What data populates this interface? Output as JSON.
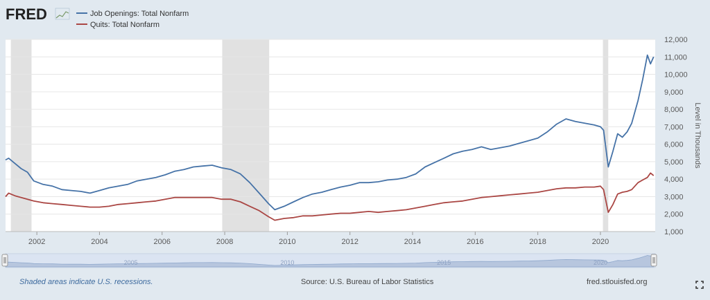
{
  "header": {
    "logo_text": "FRED",
    "logo_icon": "fred-graph-icon"
  },
  "chart_data": {
    "type": "line",
    "title": "",
    "xlabel": "",
    "ylabel": "Level in Thousands",
    "xlim": [
      2001.0,
      2021.75
    ],
    "ylim": [
      1000,
      12000
    ],
    "x_ticks": [
      "2002",
      "2004",
      "2006",
      "2008",
      "2010",
      "2012",
      "2014",
      "2016",
      "2018",
      "2020"
    ],
    "y_ticks": [
      "1,000",
      "2,000",
      "3,000",
      "4,000",
      "5,000",
      "6,000",
      "7,000",
      "8,000",
      "9,000",
      "10,000",
      "11,000",
      "12,000"
    ],
    "grid": true,
    "legend_position": "top-left",
    "recessions": [
      [
        2001.17,
        2001.83
      ],
      [
        2007.92,
        2009.42
      ],
      [
        2020.08,
        2020.25
      ]
    ],
    "series": [
      {
        "name": "Job Openings: Total Nonfarm",
        "color": "#4572a7",
        "points": [
          [
            2001.0,
            5100
          ],
          [
            2001.1,
            5200
          ],
          [
            2001.3,
            4900
          ],
          [
            2001.5,
            4600
          ],
          [
            2001.7,
            4400
          ],
          [
            2001.9,
            3900
          ],
          [
            2002.2,
            3700
          ],
          [
            2002.5,
            3600
          ],
          [
            2002.8,
            3400
          ],
          [
            2003.1,
            3350
          ],
          [
            2003.4,
            3300
          ],
          [
            2003.7,
            3200
          ],
          [
            2004.0,
            3350
          ],
          [
            2004.3,
            3500
          ],
          [
            2004.6,
            3600
          ],
          [
            2004.9,
            3700
          ],
          [
            2005.2,
            3900
          ],
          [
            2005.5,
            4000
          ],
          [
            2005.8,
            4100
          ],
          [
            2006.1,
            4250
          ],
          [
            2006.4,
            4450
          ],
          [
            2006.7,
            4550
          ],
          [
            2007.0,
            4700
          ],
          [
            2007.3,
            4750
          ],
          [
            2007.6,
            4800
          ],
          [
            2007.9,
            4650
          ],
          [
            2008.2,
            4550
          ],
          [
            2008.5,
            4300
          ],
          [
            2008.8,
            3800
          ],
          [
            2009.1,
            3200
          ],
          [
            2009.4,
            2600
          ],
          [
            2009.6,
            2250
          ],
          [
            2009.9,
            2450
          ],
          [
            2010.2,
            2700
          ],
          [
            2010.5,
            2950
          ],
          [
            2010.8,
            3150
          ],
          [
            2011.1,
            3250
          ],
          [
            2011.4,
            3400
          ],
          [
            2011.7,
            3550
          ],
          [
            2012.0,
            3650
          ],
          [
            2012.3,
            3800
          ],
          [
            2012.6,
            3800
          ],
          [
            2012.9,
            3850
          ],
          [
            2013.2,
            3950
          ],
          [
            2013.5,
            4000
          ],
          [
            2013.8,
            4100
          ],
          [
            2014.1,
            4300
          ],
          [
            2014.4,
            4700
          ],
          [
            2014.7,
            4950
          ],
          [
            2015.0,
            5200
          ],
          [
            2015.3,
            5450
          ],
          [
            2015.6,
            5600
          ],
          [
            2015.9,
            5700
          ],
          [
            2016.2,
            5850
          ],
          [
            2016.5,
            5700
          ],
          [
            2016.8,
            5800
          ],
          [
            2017.1,
            5900
          ],
          [
            2017.4,
            6050
          ],
          [
            2017.7,
            6200
          ],
          [
            2018.0,
            6350
          ],
          [
            2018.3,
            6700
          ],
          [
            2018.6,
            7150
          ],
          [
            2018.9,
            7450
          ],
          [
            2019.2,
            7300
          ],
          [
            2019.5,
            7200
          ],
          [
            2019.8,
            7100
          ],
          [
            2020.0,
            7000
          ],
          [
            2020.1,
            6800
          ],
          [
            2020.25,
            4700
          ],
          [
            2020.4,
            5600
          ],
          [
            2020.55,
            6600
          ],
          [
            2020.7,
            6400
          ],
          [
            2020.85,
            6700
          ],
          [
            2021.0,
            7200
          ],
          [
            2021.2,
            8500
          ],
          [
            2021.35,
            9700
          ],
          [
            2021.5,
            11100
          ],
          [
            2021.6,
            10600
          ],
          [
            2021.7,
            11000
          ]
        ]
      },
      {
        "name": "Quits: Total Nonfarm",
        "color": "#aa4643",
        "points": [
          [
            2001.0,
            3000
          ],
          [
            2001.1,
            3200
          ],
          [
            2001.3,
            3050
          ],
          [
            2001.5,
            2950
          ],
          [
            2001.7,
            2850
          ],
          [
            2001.9,
            2750
          ],
          [
            2002.2,
            2650
          ],
          [
            2002.5,
            2600
          ],
          [
            2002.8,
            2550
          ],
          [
            2003.1,
            2500
          ],
          [
            2003.4,
            2450
          ],
          [
            2003.7,
            2400
          ],
          [
            2004.0,
            2400
          ],
          [
            2004.3,
            2450
          ],
          [
            2004.6,
            2550
          ],
          [
            2004.9,
            2600
          ],
          [
            2005.2,
            2650
          ],
          [
            2005.5,
            2700
          ],
          [
            2005.8,
            2750
          ],
          [
            2006.1,
            2850
          ],
          [
            2006.4,
            2950
          ],
          [
            2006.7,
            2950
          ],
          [
            2007.0,
            2950
          ],
          [
            2007.3,
            2950
          ],
          [
            2007.6,
            2950
          ],
          [
            2007.9,
            2850
          ],
          [
            2008.2,
            2850
          ],
          [
            2008.5,
            2700
          ],
          [
            2008.8,
            2450
          ],
          [
            2009.1,
            2200
          ],
          [
            2009.4,
            1850
          ],
          [
            2009.6,
            1650
          ],
          [
            2009.9,
            1750
          ],
          [
            2010.2,
            1800
          ],
          [
            2010.5,
            1900
          ],
          [
            2010.8,
            1900
          ],
          [
            2011.1,
            1950
          ],
          [
            2011.4,
            2000
          ],
          [
            2011.7,
            2050
          ],
          [
            2012.0,
            2050
          ],
          [
            2012.3,
            2100
          ],
          [
            2012.6,
            2150
          ],
          [
            2012.9,
            2100
          ],
          [
            2013.2,
            2150
          ],
          [
            2013.5,
            2200
          ],
          [
            2013.8,
            2250
          ],
          [
            2014.1,
            2350
          ],
          [
            2014.4,
            2450
          ],
          [
            2014.7,
            2550
          ],
          [
            2015.0,
            2650
          ],
          [
            2015.3,
            2700
          ],
          [
            2015.6,
            2750
          ],
          [
            2015.9,
            2850
          ],
          [
            2016.2,
            2950
          ],
          [
            2016.5,
            3000
          ],
          [
            2016.8,
            3050
          ],
          [
            2017.1,
            3100
          ],
          [
            2017.4,
            3150
          ],
          [
            2017.7,
            3200
          ],
          [
            2018.0,
            3250
          ],
          [
            2018.3,
            3350
          ],
          [
            2018.6,
            3450
          ],
          [
            2018.9,
            3500
          ],
          [
            2019.2,
            3500
          ],
          [
            2019.5,
            3550
          ],
          [
            2019.8,
            3550
          ],
          [
            2020.0,
            3600
          ],
          [
            2020.1,
            3400
          ],
          [
            2020.25,
            2100
          ],
          [
            2020.4,
            2550
          ],
          [
            2020.55,
            3150
          ],
          [
            2020.7,
            3250
          ],
          [
            2020.85,
            3300
          ],
          [
            2021.0,
            3400
          ],
          [
            2021.2,
            3800
          ],
          [
            2021.35,
            3950
          ],
          [
            2021.5,
            4100
          ],
          [
            2021.6,
            4350
          ],
          [
            2021.7,
            4200
          ]
        ]
      }
    ]
  },
  "range_slider": {
    "labels": [
      "2005",
      "2010",
      "2015",
      "2020"
    ],
    "start": 2001.0,
    "end": 2021.75
  },
  "footer": {
    "recession_note": "Shaded areas indicate U.S. recessions.",
    "source": "Source: U.S. Bureau of Labor Statistics",
    "site": "fred.stlouisfed.org"
  },
  "icons": {
    "fullscreen": "fullscreen-icon"
  }
}
